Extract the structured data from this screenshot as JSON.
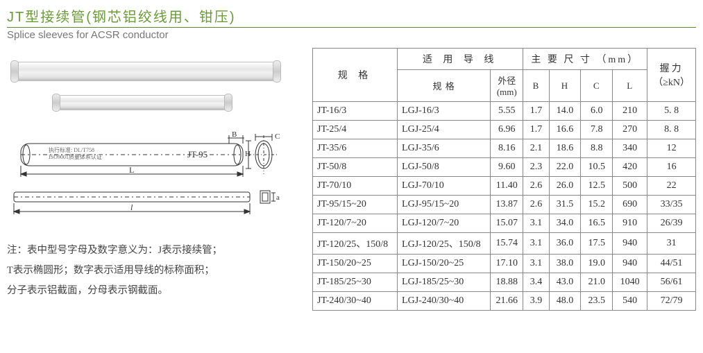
{
  "title_cn": "JT型接续管(钢芯铝绞线用、钳压)",
  "title_en": "Splice sleeves for ACSR conductor",
  "diagram": {
    "label_inside": "JT-95",
    "spec_text1": "执行标准: DL/T758",
    "spec_text2": "ISO9001质量体系认证",
    "dim_L_lower": "l",
    "dim_L_upper": "L",
    "dim_B": "B",
    "dim_C": "C",
    "dim_H": "H",
    "dim_a": "a"
  },
  "note_lines": [
    "注：表中型号字母及数字意义为：J表示接续管；",
    "T表示椭圆形；数字表示适用导线的标称面积；",
    "分子表示铝截面，分母表示钢截面。"
  ],
  "table": {
    "h_spec": "规  格",
    "h_cond": "适  用  导  线",
    "h_dims": "主 要 尺 寸 （mm）",
    "h_grip": "握力",
    "h_grip_unit": "（≥kN）",
    "h_cond_spec": "规  格",
    "h_od": "外径",
    "h_od_unit": "(mm)",
    "h_B": "B",
    "h_H": "H",
    "h_C": "C",
    "h_L": "L",
    "rows": [
      {
        "m": "JT-16/3",
        "c": "LGJ-16/3",
        "od": "5.55",
        "b": "1.7",
        "h": "14.0",
        "cc": "6.0",
        "l": "210",
        "g": "5. 8"
      },
      {
        "m": "JT-25/4",
        "c": "LGJ-25/4",
        "od": "6.96",
        "b": "1.7",
        "h": "16.6",
        "cc": "7.8",
        "l": "270",
        "g": "8. 8"
      },
      {
        "m": "JT-35/6",
        "c": "LGJ-35/6",
        "od": "8.16",
        "b": "2.1",
        "h": "18.6",
        "cc": "8.8",
        "l": "340",
        "g": "12"
      },
      {
        "m": "JT-50/8",
        "c": "LGJ-50/8",
        "od": "9.60",
        "b": "2.3",
        "h": "22.0",
        "cc": "10.5",
        "l": "420",
        "g": "16"
      },
      {
        "m": "JT-70/10",
        "c": "LGJ-70/10",
        "od": "11.40",
        "b": "2.6",
        "h": "26.0",
        "cc": "12.5",
        "l": "500",
        "g": "22"
      },
      {
        "m": "JT-95/15~20",
        "c": "LGJ-95/15~20",
        "od": "13.87",
        "b": "2.6",
        "h": "31.5",
        "cc": "15.2",
        "l": "690",
        "g": "33/35"
      },
      {
        "m": "JT-120/7~20",
        "c": "LGJ-120/7~20",
        "od": "15.07",
        "b": "3.1",
        "h": "34.0",
        "cc": "16.5",
        "l": "910",
        "g": "26/39"
      },
      {
        "m": "JT-120/25、150/8",
        "c": "LGJ-120/25、150/8",
        "od": "15.74",
        "b": "3.1",
        "h": "36.0",
        "cc": "17.5",
        "l": "940",
        "g": "31"
      },
      {
        "m": "JT-150/20~25",
        "c": "LGJ-150/20~25",
        "od": "17.10",
        "b": "3.1",
        "h": "38.0",
        "cc": "19.0",
        "l": "940",
        "g": "44/51"
      },
      {
        "m": "JT-185/25~30",
        "c": "LGJ-185/25~30",
        "od": "18.88",
        "b": "3.4",
        "h": "43.0",
        "cc": "21.0",
        "l": "1040",
        "g": "56/61"
      },
      {
        "m": "JT-240/30~40",
        "c": "LGJ-240/30~40",
        "od": "21.66",
        "b": "3.9",
        "h": "48.0",
        "cc": "23.5",
        "l": "540",
        "g": "72/79"
      }
    ]
  }
}
